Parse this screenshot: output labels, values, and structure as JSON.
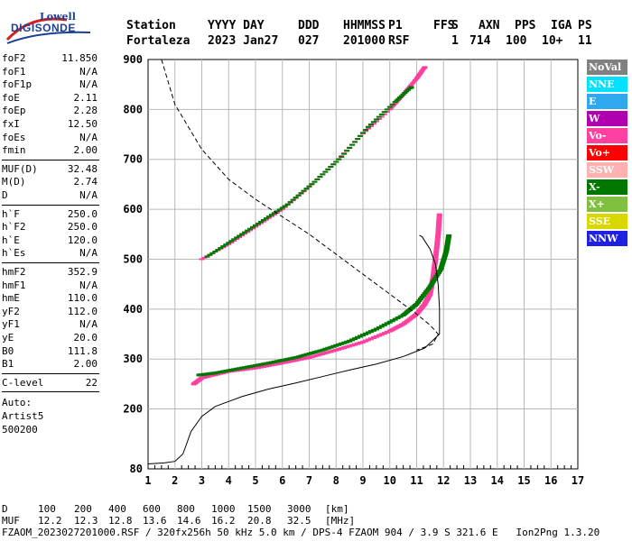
{
  "logo": {
    "line1": "Lowell",
    "line2": "DIGISONDE"
  },
  "header": {
    "row1": [
      "Station",
      "YYYY DAY",
      "DDD",
      "HHMMSS",
      "P1",
      "FFS",
      "S",
      "AXN",
      "PPS",
      "IGA",
      "PS"
    ],
    "row2": [
      "Fortaleza",
      "2023 Jan27",
      "027",
      "201000",
      "RSF",
      "1",
      "714",
      "100",
      "10+",
      "11"
    ]
  },
  "params": {
    "group1": [
      {
        "label": "foF2",
        "value": "11.850"
      },
      {
        "label": "foF1",
        "value": "N/A"
      },
      {
        "label": "foF1p",
        "value": "N/A"
      },
      {
        "label": "foE",
        "value": "2.11"
      },
      {
        "label": "foEp",
        "value": "2.28"
      },
      {
        "label": "fxI",
        "value": "12.50"
      },
      {
        "label": "foEs",
        "value": "N/A"
      },
      {
        "label": "fmin",
        "value": "2.00"
      }
    ],
    "group2": [
      {
        "label": "MUF(D)",
        "value": "32.48"
      },
      {
        "label": "M(D)",
        "value": "2.74"
      },
      {
        "label": "D",
        "value": "N/A"
      }
    ],
    "group3": [
      {
        "label": "h`F",
        "value": "250.0"
      },
      {
        "label": "h`F2",
        "value": "250.0"
      },
      {
        "label": "h`E",
        "value": "120.0"
      },
      {
        "label": "h`Es",
        "value": "N/A"
      }
    ],
    "group4": [
      {
        "label": "hmF2",
        "value": "352.9"
      },
      {
        "label": "hmF1",
        "value": "N/A"
      },
      {
        "label": "hmE",
        "value": "110.0"
      },
      {
        "label": "yF2",
        "value": "112.0"
      },
      {
        "label": "yF1",
        "value": "N/A"
      },
      {
        "label": "yE",
        "value": "20.0"
      },
      {
        "label": "B0",
        "value": "111.8"
      },
      {
        "label": "B1",
        "value": "2.00"
      }
    ],
    "group5": [
      {
        "label": "C-level",
        "value": "22"
      }
    ],
    "group6": [
      "Auto:",
      "Artist5",
      "500200"
    ]
  },
  "legend": [
    {
      "label": "NoVal",
      "color": "#808080"
    },
    {
      "label": "NNE",
      "color": "#00e0ff"
    },
    {
      "label": "E",
      "color": "#30a8f0"
    },
    {
      "label": "W",
      "color": "#b000b0"
    },
    {
      "label": "Vo-",
      "color": "#ff40a0"
    },
    {
      "label": "Vo+",
      "color": "#ff0000"
    },
    {
      "label": "SSW",
      "color": "#ffb0b0"
    },
    {
      "label": "X-",
      "color": "#007800"
    },
    {
      "label": "X+",
      "color": "#80c040"
    },
    {
      "label": "SSE",
      "color": "#d8d800"
    },
    {
      "label": "NNW",
      "color": "#2020e0"
    }
  ],
  "footer": {
    "row1": [
      "D",
      "100",
      "200",
      "400",
      "600",
      "800",
      "1000",
      "1500",
      "3000",
      "[km]"
    ],
    "row2": [
      "MUF",
      "12.2",
      "12.3",
      "12.8",
      "13.6",
      "14.6",
      "16.2",
      "20.8",
      "32.5",
      "[MHz]"
    ],
    "row3": "FZAOM_2023027201000.RSF / 320fx256h 50 kHz 5.0 km / DPS-4 FZAOM 904 / 3.9 S 321.6 E   Ion2Png 1.3.20"
  },
  "chart_data": {
    "type": "scatter",
    "title": "",
    "xlabel": "",
    "ylabel": "",
    "xlim": [
      1,
      17
    ],
    "ylim": [
      80,
      900
    ],
    "x_ticks": [
      1,
      2,
      3,
      4,
      5,
      6,
      7,
      8,
      9,
      10,
      11,
      12,
      13,
      14,
      15,
      16,
      17
    ],
    "y_ticks": [
      80,
      200,
      300,
      400,
      500,
      600,
      700,
      800,
      900
    ],
    "grid": true,
    "legend_position": "right",
    "series": [
      {
        "name": "Vo-",
        "color": "#ff40a0",
        "x": [
          2.7,
          3.0,
          4.0,
          5.0,
          6.0,
          7.0,
          8.0,
          9.0,
          10.0,
          10.5,
          11.0,
          11.3,
          11.5,
          11.6,
          11.7,
          11.8,
          11.85
        ],
        "y": [
          250,
          262,
          275,
          282,
          292,
          303,
          318,
          334,
          356,
          370,
          390,
          410,
          430,
          460,
          500,
          550,
          590
        ]
      },
      {
        "name": "X-",
        "color": "#007800",
        "x": [
          2.9,
          3.5,
          4.5,
          5.5,
          6.5,
          7.5,
          8.5,
          9.5,
          10.5,
          11.0,
          11.5,
          11.9,
          12.1,
          12.2
        ],
        "y": [
          268,
          272,
          282,
          292,
          303,
          318,
          336,
          360,
          388,
          410,
          445,
          480,
          515,
          548
        ]
      },
      {
        "name": "Vo- (multiple)",
        "color": "#ff40a0",
        "x": [
          3.0,
          4.0,
          5.0,
          6.0,
          7.0,
          8.0,
          9.0,
          10.0,
          10.5,
          11.0,
          11.3
        ],
        "y": [
          500,
          530,
          565,
          600,
          645,
          695,
          752,
          800,
          830,
          862,
          885
        ]
      },
      {
        "name": "X- (multiple)",
        "color": "#007800",
        "x": [
          3.2,
          4.2,
          5.2,
          6.2,
          7.2,
          8.2,
          9.2,
          10.2,
          10.8
        ],
        "y": [
          505,
          540,
          575,
          610,
          655,
          705,
          765,
          815,
          845
        ]
      }
    ],
    "profile_curve": {
      "x": [
        1.0,
        1.6,
        2.0,
        2.3,
        2.6,
        3.0,
        3.5,
        4.5,
        5.5,
        6.5,
        7.5,
        8.5,
        9.5,
        10.5,
        11.3,
        11.85,
        11.85,
        11.8,
        11.7,
        11.5,
        11.2,
        11.1
      ],
      "y": [
        90,
        92,
        95,
        110,
        155,
        185,
        205,
        225,
        240,
        252,
        265,
        278,
        290,
        305,
        322,
        350,
        400,
        450,
        490,
        520,
        545,
        548
      ]
    },
    "model_curve": {
      "x": [
        1.5,
        2.0,
        3.0,
        4.0,
        5.0,
        6.0,
        7.0,
        8.0,
        9.0,
        10.0,
        11.0,
        11.5,
        11.8,
        11.6,
        11.0
      ],
      "y": [
        900,
        810,
        720,
        660,
        620,
        585,
        550,
        510,
        470,
        430,
        390,
        368,
        350,
        330,
        318
      ]
    }
  }
}
